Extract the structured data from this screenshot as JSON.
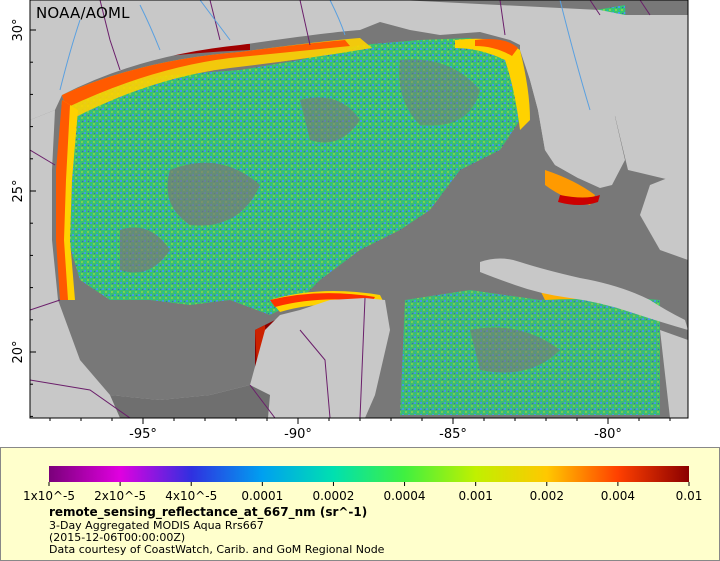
{
  "map": {
    "credit": "NOAA/AOML",
    "lat_ticks": [
      {
        "value": 30,
        "label": "30°"
      },
      {
        "value": 25,
        "label": "25°"
      },
      {
        "value": 20,
        "label": "20°"
      }
    ],
    "lon_ticks": [
      {
        "value": -95,
        "label": "-95°"
      },
      {
        "value": -90,
        "label": "-90°"
      },
      {
        "value": -85,
        "label": "-85°"
      },
      {
        "value": -80,
        "label": "-80°"
      }
    ],
    "colors": {
      "land": "#c8c8c8",
      "no_data": "#787878",
      "border": "#6b1f6b",
      "river": "#5aa0e0"
    }
  },
  "legend": {
    "colorbar_ticks": [
      "1x10^-5",
      "2x10^-5",
      "4x10^-5",
      "0.0001",
      "0.0002",
      "0.0004",
      "0.001",
      "0.002",
      "0.004",
      "0.01"
    ],
    "colorbar_colors": [
      "#7a007a",
      "#e000e0",
      "#3030e0",
      "#00a0f0",
      "#00e0b0",
      "#40f040",
      "#c0f000",
      "#ffc800",
      "#ff4000",
      "#8b0000"
    ],
    "title": "remote_sensing_reflectance_at_667_nm (sr^-1)",
    "line1": "3-Day Aggregated MODIS Aqua Rrs667",
    "line2": "(2015-12-06T00:00:00Z)",
    "line3": "Data courtesy of CoastWatch, Carib. and GoM Regional Node"
  }
}
